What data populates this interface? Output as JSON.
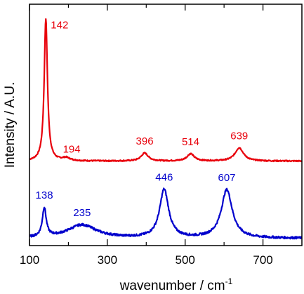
{
  "chart_data": {
    "type": "line",
    "xlabel": "wavenumber / cm",
    "xlabel_superscript": "-1",
    "ylabel": "Intensity / A.U.",
    "xlim": [
      100,
      800
    ],
    "ylim": [
      0,
      100
    ],
    "x_ticks": [
      100,
      300,
      500,
      700
    ],
    "x_tick_labels": [
      "100",
      "300",
      "500",
      "700"
    ],
    "x_minor_ticks": [
      200,
      400,
      600
    ],
    "y_tick_labels": [],
    "grid": false,
    "legend": "none",
    "series": [
      {
        "color": "#e8000b",
        "baseline": 35,
        "noise": 0.25,
        "peaks": [
          {
            "x": 142,
            "height": 59,
            "width": 5
          },
          {
            "x": 194,
            "height": 1.2,
            "width": 12
          },
          {
            "x": 396,
            "height": 3.3,
            "width": 11
          },
          {
            "x": 514,
            "height": 3.0,
            "width": 11
          },
          {
            "x": 639,
            "height": 5.5,
            "width": 13
          }
        ],
        "labels": [
          {
            "text": "142",
            "x": 142
          },
          {
            "text": "194",
            "x": 194
          },
          {
            "text": "396",
            "x": 396
          },
          {
            "text": "514",
            "x": 514
          },
          {
            "text": "639",
            "x": 639
          }
        ]
      },
      {
        "color": "#0000cc",
        "baseline": 3,
        "noise": 0.45,
        "peaks": [
          {
            "x": 138,
            "height": 12,
            "width": 6
          },
          {
            "x": 235,
            "height": 5.5,
            "width": 45
          },
          {
            "x": 446,
            "height": 20,
            "width": 14
          },
          {
            "x": 607,
            "height": 20,
            "width": 17
          }
        ],
        "labels": [
          {
            "text": "138",
            "x": 138
          },
          {
            "text": "235",
            "x": 235
          },
          {
            "text": "446",
            "x": 446
          },
          {
            "text": "607",
            "x": 607
          }
        ]
      }
    ]
  }
}
